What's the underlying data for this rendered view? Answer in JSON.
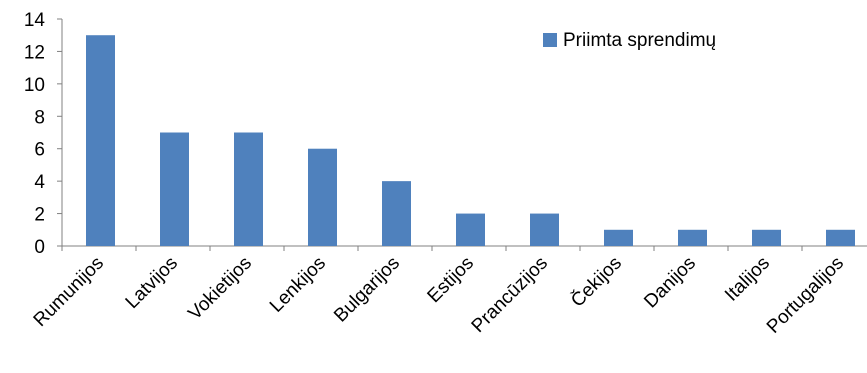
{
  "chart_data": {
    "type": "bar",
    "categories": [
      "Rumunijos",
      "Latvijos",
      "Vokietijos",
      "Lenkijos",
      "Bulgarijos",
      "Estijos",
      "Prancūzijos",
      "Čekijos",
      "Danijos",
      "Italijos",
      "Portugalijos"
    ],
    "series": [
      {
        "name": "Priimta sprendimų",
        "values": [
          13,
          7,
          7,
          6,
          4,
          2,
          2,
          1,
          1,
          1,
          1
        ],
        "color": "#4F81BD"
      }
    ],
    "ylim": [
      0,
      14
    ],
    "yticks": [
      0,
      2,
      4,
      6,
      8,
      10,
      12,
      14
    ],
    "grid": false,
    "legend_position": "top-right",
    "x_label_rotation_deg": -45
  }
}
